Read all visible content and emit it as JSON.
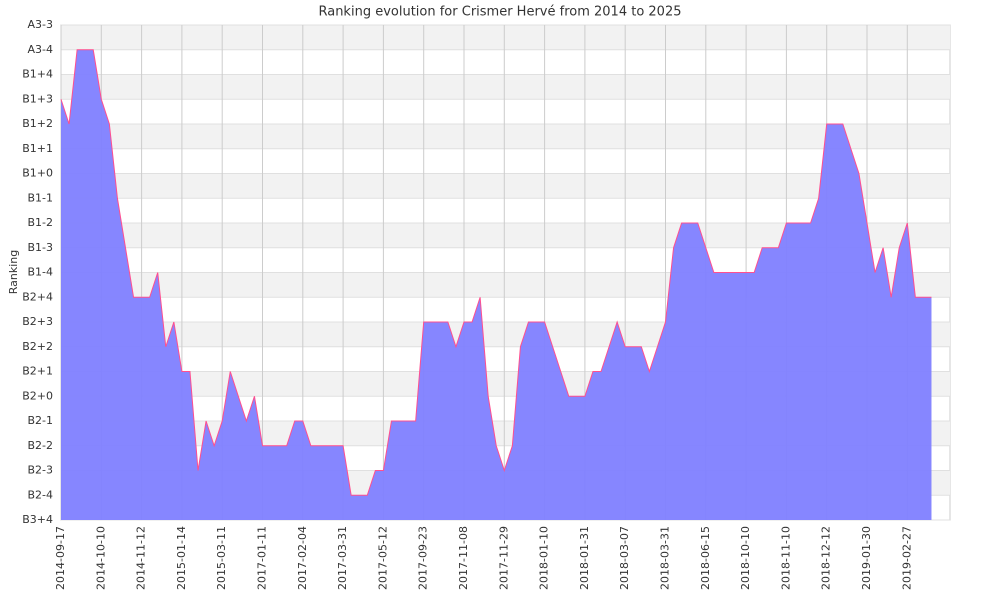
{
  "chart_data": {
    "type": "area",
    "title": "Ranking evolution for Crismer Hervé from 2014 to 2025",
    "y_label": "Ranking",
    "color": "#7f7fff",
    "line_color": "#ff4f8f",
    "grid": true,
    "categories": [
      "2014-09-17",
      null,
      null,
      null,
      null,
      "2014-10-10",
      null,
      null,
      null,
      null,
      "2014-11-12",
      null,
      null,
      null,
      null,
      "2015-01-14",
      null,
      null,
      null,
      null,
      "2015-03-11",
      null,
      null,
      null,
      null,
      "2017-01-11",
      null,
      null,
      null,
      null,
      "2017-02-04",
      null,
      null,
      null,
      null,
      "2017-03-31",
      null,
      null,
      null,
      null,
      "2017-05-12",
      null,
      null,
      null,
      null,
      "2017-09-23",
      null,
      null,
      null,
      null,
      "2017-11-08",
      null,
      null,
      null,
      null,
      "2017-11-29",
      null,
      null,
      null,
      null,
      "2018-01-10",
      null,
      null,
      null,
      null,
      "2018-01-31",
      null,
      null,
      null,
      null,
      "2018-03-07",
      null,
      null,
      null,
      null,
      "2018-03-31",
      null,
      null,
      null,
      null,
      "2018-06-15",
      null,
      null,
      null,
      null,
      "2018-10-10",
      null,
      null,
      null,
      null,
      "2018-11-10",
      null,
      null,
      null,
      null,
      "2018-12-12",
      null,
      null,
      null,
      null,
      "2019-01-30",
      null,
      null,
      null,
      null,
      "2019-02-27",
      null,
      null,
      null
    ],
    "values": [
      17,
      16,
      19,
      19,
      19,
      17,
      16,
      13,
      11,
      9,
      9,
      9,
      10,
      7,
      8,
      6,
      6,
      2,
      4,
      3,
      4,
      6,
      5,
      4,
      5,
      3,
      3,
      3,
      3,
      4,
      4,
      3,
      3,
      3,
      3,
      3,
      1,
      1,
      1,
      2,
      2,
      4,
      4,
      4,
      4,
      8,
      8,
      8,
      8,
      7,
      8,
      8,
      9,
      5,
      3,
      2,
      3,
      7,
      8,
      8,
      8,
      7,
      6,
      5,
      5,
      5,
      6,
      6,
      7,
      8,
      7,
      7,
      7,
      6,
      7,
      8,
      11,
      12,
      12,
      12,
      11,
      10,
      10,
      10,
      10,
      10,
      10,
      11,
      11,
      11,
      12,
      12,
      12,
      12,
      13,
      16,
      16,
      16,
      15,
      14,
      12,
      10,
      11,
      9,
      11,
      12,
      9,
      9,
      9
    ],
    "ylim": [
      0,
      20
    ],
    "yticks": [
      {
        "value": 0,
        "label": "B3+4"
      },
      {
        "value": 1,
        "label": "B2-4"
      },
      {
        "value": 2,
        "label": "B2-3"
      },
      {
        "value": 3,
        "label": "B2-2"
      },
      {
        "value": 4,
        "label": "B2-1"
      },
      {
        "value": 5,
        "label": "B2+0"
      },
      {
        "value": 6,
        "label": "B2+1"
      },
      {
        "value": 7,
        "label": "B2+2"
      },
      {
        "value": 8,
        "label": "B2+3"
      },
      {
        "value": 9,
        "label": "B2+4"
      },
      {
        "value": 10,
        "label": "B1-4"
      },
      {
        "value": 11,
        "label": "B1-3"
      },
      {
        "value": 12,
        "label": "B1-2"
      },
      {
        "value": 13,
        "label": "B1-1"
      },
      {
        "value": 14,
        "label": "B1+0"
      },
      {
        "value": 15,
        "label": "B1+1"
      },
      {
        "value": 16,
        "label": "B1+2"
      },
      {
        "value": 17,
        "label": "B1+3"
      },
      {
        "value": 18,
        "label": "B1+4"
      },
      {
        "value": 19,
        "label": "A3-4"
      },
      {
        "value": 20,
        "label": "A3-3"
      }
    ]
  }
}
